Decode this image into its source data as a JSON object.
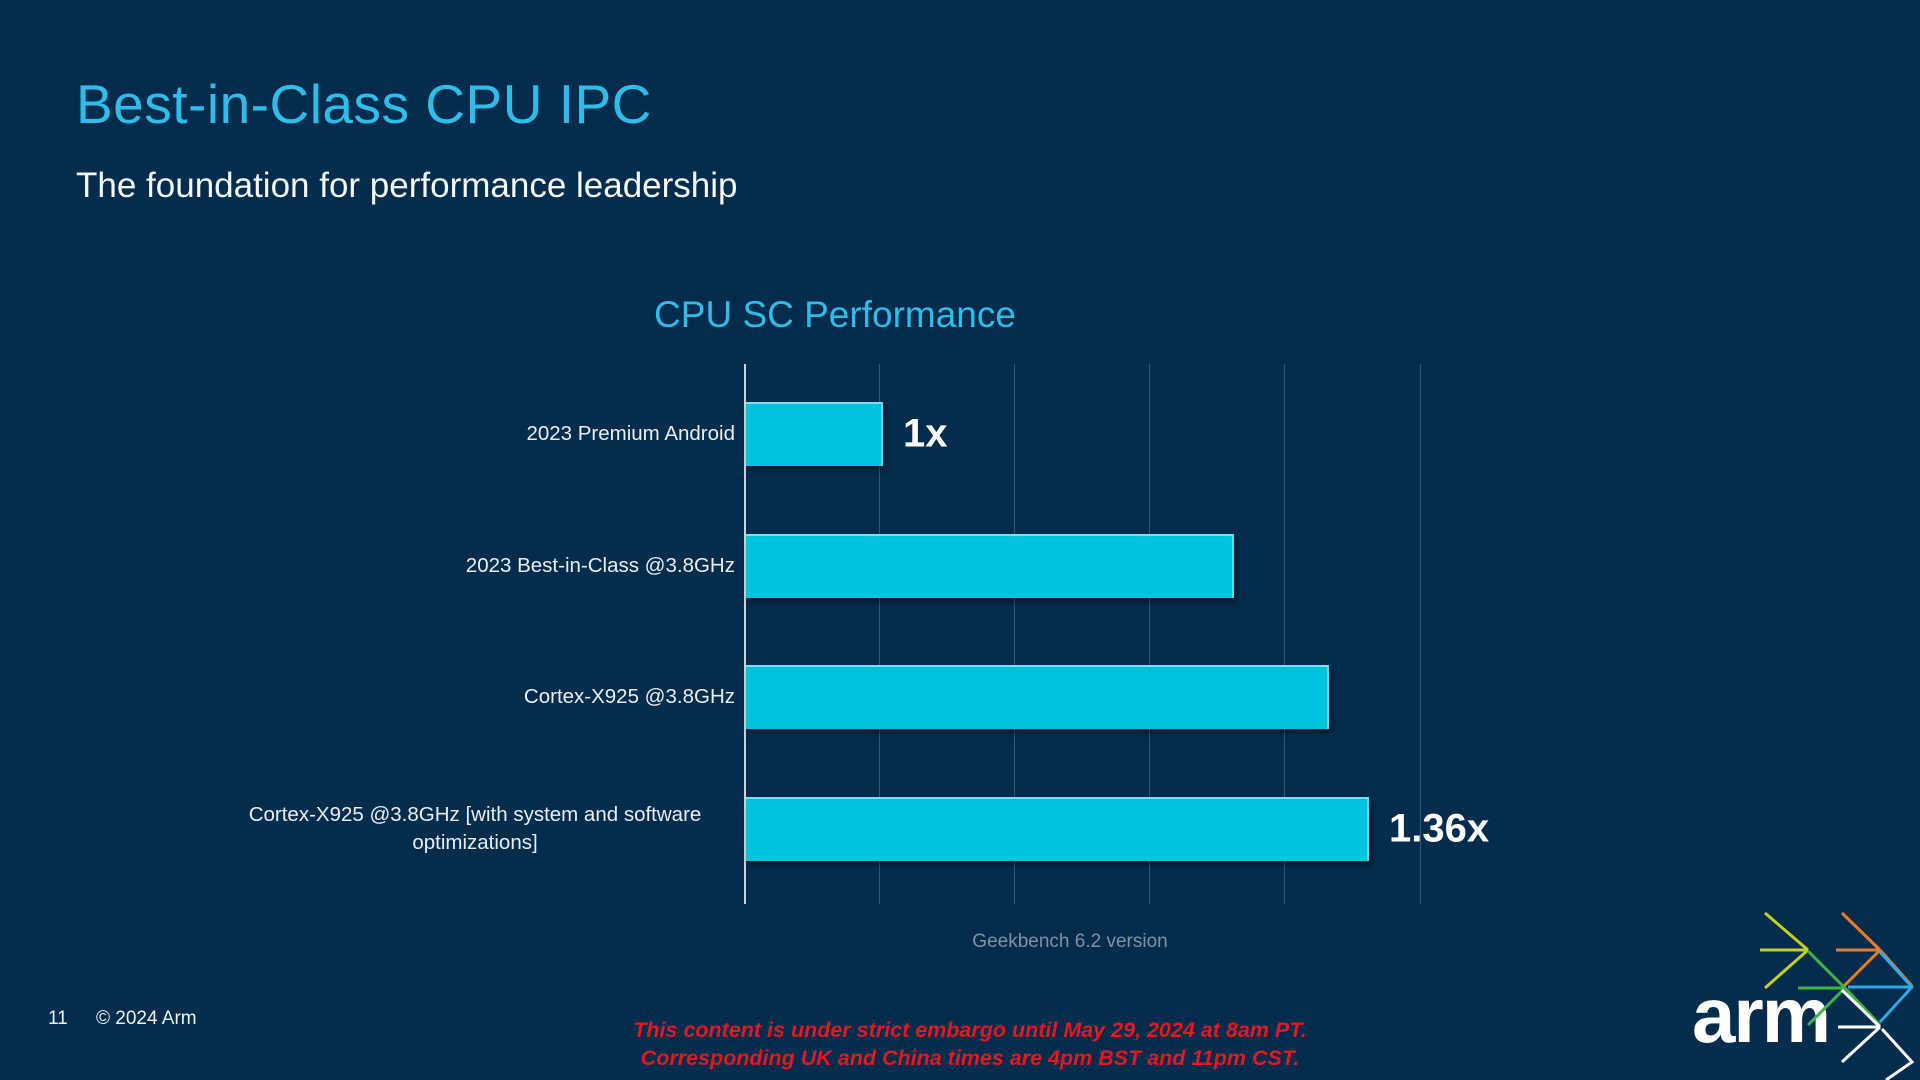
{
  "slide": {
    "title": "Best-in-Class CPU IPC",
    "subtitle": "The foundation for performance leadership",
    "page_number": "11",
    "copyright": "© 2024 Arm",
    "embargo_line1": "This content is under strict embargo until May 29, 2024 at 8am PT.",
    "embargo_line2": "Corresponding UK and China times are 4pm BST and 11pm CST.",
    "logo_text": "arm"
  },
  "chart_data": {
    "type": "bar",
    "orientation": "horizontal",
    "title": "CPU SC Performance",
    "caption": "Geekbench 6.2 version",
    "categories": [
      "2023 Premium Android",
      "2023 Best-in-Class @3.8GHz",
      "Cortex-X925 @3.8GHz",
      "Cortex-X925 @3.8GHz [with system and software optimizations]"
    ],
    "values": [
      1.0,
      1.26,
      1.33,
      1.36
    ],
    "data_labels": [
      "1x",
      "",
      "",
      "1.36x"
    ],
    "axis_min": 0.9,
    "axis_max": 1.4,
    "gridline_step": 0.1,
    "grid": "vertical-only",
    "legend": false,
    "bar_color": "#00c1de"
  },
  "colors": {
    "background": "#042c4d",
    "accent_cyan": "#2fbce8",
    "bar_cyan": "#00c1de",
    "caption_gray": "#7f93a6",
    "embargo_red": "#e2191f"
  }
}
